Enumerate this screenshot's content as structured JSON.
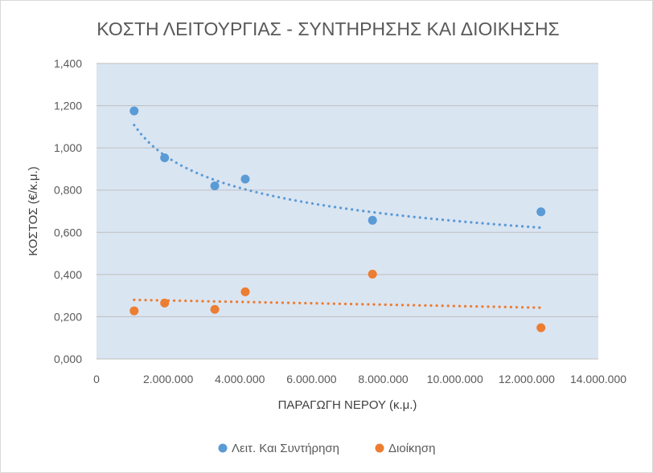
{
  "chart_data": {
    "type": "scatter",
    "title": "ΚΟΣΤΗ ΛΕΙΤΟΥΡΓΙΑΣ - ΣΥΝΤΗΡΗΣΗΣ ΚΑΙ ΔΙΟΙΚΗΣΗΣ",
    "xlabel": "ΠΑΡΑΓΩΓΗ ΝΕΡΟΥ (κ.μ.)",
    "ylabel": "ΚΟΣΤΟΣ (€/κ.μ.)",
    "xlim": [
      0,
      14000000
    ],
    "ylim": [
      0,
      1.4
    ],
    "x_ticks": [
      {
        "value": 0,
        "label": "0"
      },
      {
        "value": 2000000,
        "label": "2.000.000"
      },
      {
        "value": 4000000,
        "label": "4.000.000"
      },
      {
        "value": 6000000,
        "label": "6.000.000"
      },
      {
        "value": 8000000,
        "label": "8.000.000"
      },
      {
        "value": 10000000,
        "label": "10.000.000"
      },
      {
        "value": 12000000,
        "label": "12.000.000"
      },
      {
        "value": 14000000,
        "label": "14.000.000"
      }
    ],
    "y_ticks": [
      {
        "value": 0,
        "label": "0,000"
      },
      {
        "value": 0.2,
        "label": "0,200"
      },
      {
        "value": 0.4,
        "label": "0,400"
      },
      {
        "value": 0.6,
        "label": "0,600"
      },
      {
        "value": 0.8,
        "label": "0,800"
      },
      {
        "value": 1.0,
        "label": "1,000"
      },
      {
        "value": 1.2,
        "label": "1,200"
      },
      {
        "value": 1.4,
        "label": "1,400"
      }
    ],
    "grid": true,
    "legend_position": "bottom",
    "series": [
      {
        "name": "Λειτ. Και Συντήρηση",
        "color": "#5b9bd5",
        "points": [
          {
            "x": 1050000,
            "y": 1.175
          },
          {
            "x": 1900000,
            "y": 0.953
          },
          {
            "x": 3300000,
            "y": 0.82
          },
          {
            "x": 4150000,
            "y": 0.852
          },
          {
            "x": 7700000,
            "y": 0.657
          },
          {
            "x": 12400000,
            "y": 0.697
          }
        ],
        "trendline": {
          "style": "dotted",
          "type": "power",
          "x_start": 1050000,
          "x_end": 12400000,
          "y_start": 1.108,
          "y_end": 0.622
        }
      },
      {
        "name": "Διοίκηση",
        "color": "#ed7d31",
        "points": [
          {
            "x": 1050000,
            "y": 0.228
          },
          {
            "x": 1900000,
            "y": 0.265
          },
          {
            "x": 3300000,
            "y": 0.235
          },
          {
            "x": 4150000,
            "y": 0.318
          },
          {
            "x": 7700000,
            "y": 0.402
          },
          {
            "x": 12400000,
            "y": 0.148
          }
        ],
        "trendline": {
          "style": "dotted",
          "type": "linear",
          "x_start": 1050000,
          "x_end": 12400000,
          "y_start": 0.28,
          "y_end": 0.243
        }
      }
    ]
  },
  "colors": {
    "plot_background": "#dae5f2",
    "gridline": "#bfbfbf",
    "text": "#595959"
  }
}
